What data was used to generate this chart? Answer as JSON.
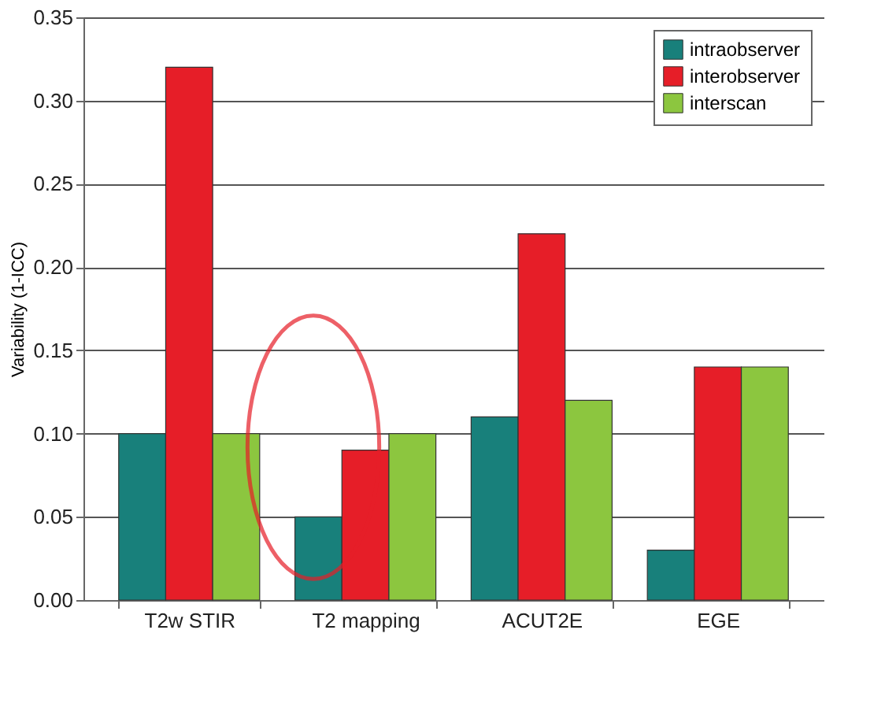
{
  "chart_data": {
    "type": "bar",
    "ylabel": "Variability (1-ICC)",
    "categories": [
      "T2w STIR",
      "T2 mapping",
      "ACUT2E",
      "EGE"
    ],
    "series": [
      {
        "name": "intraobserver",
        "color": "#18807b",
        "values": [
          0.1,
          0.05,
          0.11,
          0.03
        ]
      },
      {
        "name": "interobserver",
        "color": "#e61e28",
        "values": [
          0.32,
          0.09,
          0.22,
          0.14
        ]
      },
      {
        "name": "interscan",
        "color": "#8cc63f",
        "values": [
          0.1,
          0.1,
          0.12,
          0.14
        ]
      }
    ],
    "ylim": [
      0,
      0.35
    ],
    "yticks": [
      {
        "value": 0,
        "label": "0.00"
      },
      {
        "value": 0.05,
        "label": "0.05"
      },
      {
        "value": 0.1,
        "label": "0.10"
      },
      {
        "value": 0.15,
        "label": "0.15"
      },
      {
        "value": 0.2,
        "label": "0.20"
      },
      {
        "value": 0.25,
        "label": "0.25"
      },
      {
        "value": 0.3,
        "label": "0.30"
      },
      {
        "value": 0.35,
        "label": "0.35"
      }
    ],
    "grid": "y",
    "legend": "top right"
  }
}
